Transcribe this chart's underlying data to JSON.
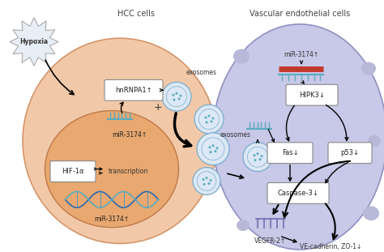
{
  "bg_color": "#ffffff",
  "hcc_cell_color": "#f2c9a8",
  "hcc_nucleus_color": "#e8a870",
  "vascular_cell_color": "#c8c8e8",
  "vascular_outer_color": "#d8d8f0",
  "hypoxia_text": "Hypoxia",
  "hcc_label": "HCC cells",
  "vascular_label": "Vascular endothelial cells",
  "teal_color": "#5aacbf",
  "red_bar_color": "#c0392b",
  "dna_color1": "#2a6ab0",
  "dna_color2": "#5aacbf",
  "exosome_fill": "#dce8f5",
  "exosome_edge": "#7aaccc",
  "spot_color": "#b8b8d8",
  "box_fc": "#ffffff",
  "box_ec": "#888888",
  "arrow_black": "#111111"
}
